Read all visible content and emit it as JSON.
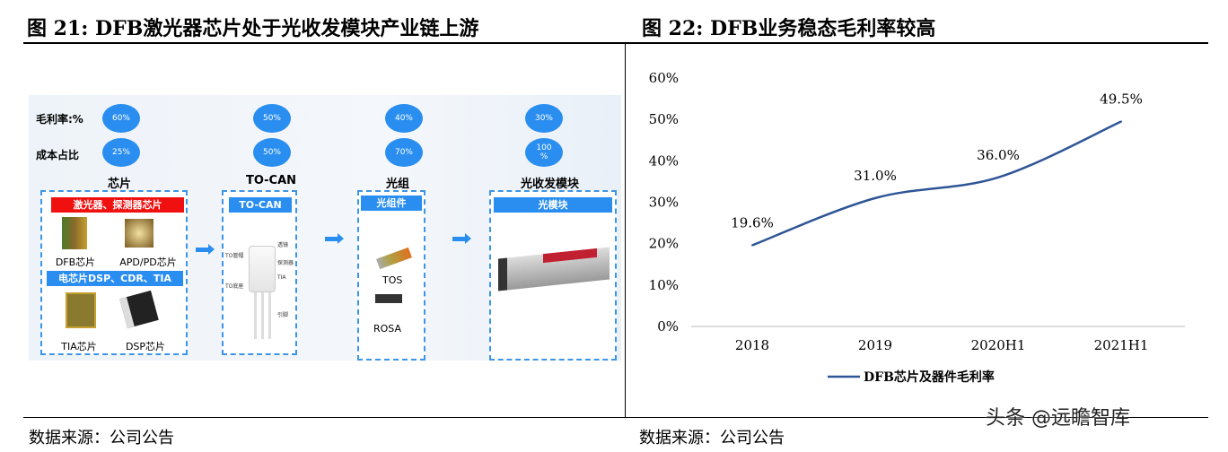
{
  "left": {
    "title": "图 21:  DFB激光器芯片处于光收发模块产业链上游",
    "source": "数据来源：公司公告",
    "row_labels": [
      "毛利率:%",
      "成本占比"
    ],
    "stages": [
      {
        "name": "芯片",
        "gross_margin": "60%",
        "cost_share": "25%"
      },
      {
        "name": "TO-CAN",
        "gross_margin": "50%",
        "cost_share": "50%"
      },
      {
        "name": "光组",
        "gross_margin": "40%",
        "cost_share": "70%"
      },
      {
        "name": "光收发模块",
        "gross_margin": "30%",
        "cost_share": "100\n%"
      }
    ],
    "chip_box": {
      "bar1": "激光器、探测器芯片",
      "bar2": "电芯片DSP、CDR、TIA",
      "items": [
        "DFB芯片",
        "APD/PD芯片",
        "TIA芯片",
        "DSP芯片"
      ]
    },
    "tocan_box": {
      "bar": "TO-CAN",
      "parts": [
        "透镜",
        "TO管帽",
        "探测器",
        "TIA",
        "TO底座",
        "引脚"
      ]
    },
    "optic_box": {
      "bar": "光组件",
      "items": [
        "TOS",
        "ROSA"
      ]
    },
    "module_box": {
      "bar": "光模块"
    },
    "colors": {
      "blue": "#2a8ef0",
      "red": "#f01010"
    }
  },
  "right": {
    "title": "图 22:  DFB业务稳态毛利率较高",
    "source": "数据来源：公司公告"
  },
  "watermark": "头条 @远瞻智库",
  "chart_data": {
    "type": "line",
    "categories": [
      "2018",
      "2019",
      "2020H1",
      "2021H1"
    ],
    "series": [
      {
        "name": "DFB芯片及器件毛利率",
        "values": [
          19.6,
          31.0,
          36.0,
          49.5
        ],
        "labels": [
          "19.6%",
          "31.0%",
          "36.0%",
          "49.5%"
        ],
        "color": "#2f5597"
      }
    ],
    "ylim": [
      0,
      60
    ],
    "yticks": [
      "0%",
      "10%",
      "20%",
      "30%",
      "40%",
      "50%",
      "60%"
    ],
    "grid": false,
    "legend": "bottom",
    "smooth": true
  }
}
